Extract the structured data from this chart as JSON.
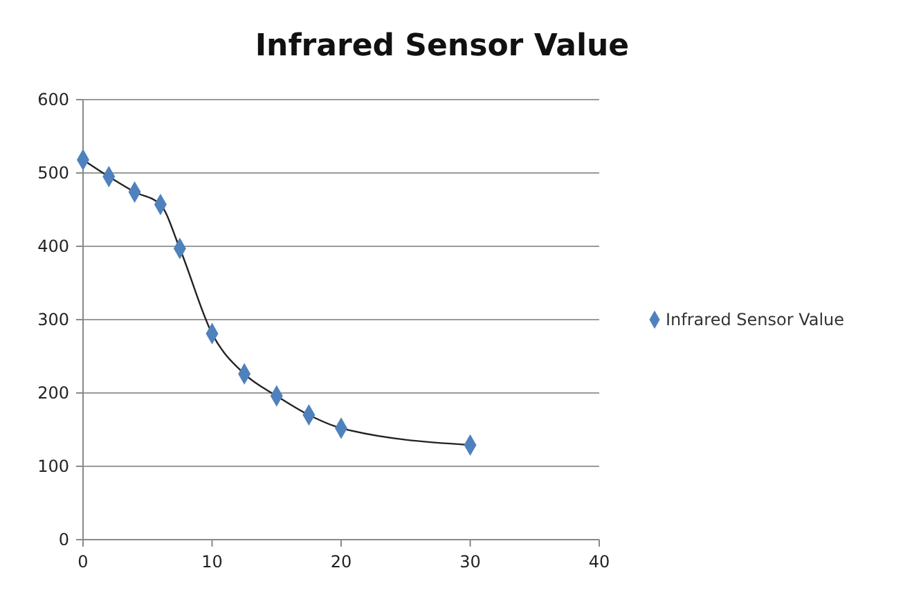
{
  "chart_data": {
    "type": "scatter",
    "title": "Infrared Sensor Value",
    "x": [
      0,
      2,
      4,
      6,
      7.5,
      10,
      12.5,
      15,
      17.5,
      20,
      30
    ],
    "series": [
      {
        "type": "line",
        "marker": "none",
        "color": "#222222",
        "values": [
          518,
          495,
          474,
          457,
          397,
          281,
          226,
          196,
          170,
          152,
          129
        ]
      },
      {
        "name": "Infrared Sensor Value",
        "color": "#4f81bd",
        "values": [
          518,
          495,
          474,
          457,
          397,
          281,
          226,
          196,
          170,
          152,
          129
        ]
      }
    ],
    "xlim": [
      0,
      40
    ],
    "xticks": [
      0,
      10,
      20,
      30,
      40
    ],
    "ylim": [
      0,
      600
    ],
    "yticks": [
      0,
      100,
      200,
      300,
      400,
      500,
      600
    ],
    "grid": "y",
    "legend": "right",
    "marker": "diamond",
    "line_style": "solid"
  }
}
